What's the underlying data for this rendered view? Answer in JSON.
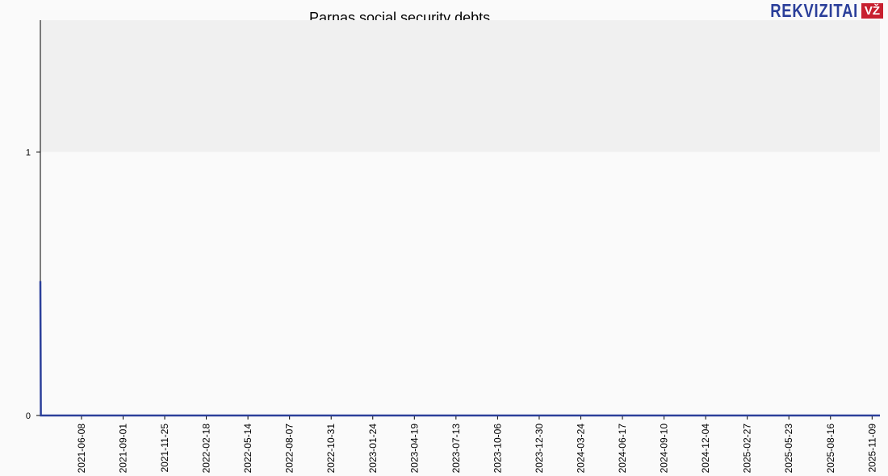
{
  "chart_data": {
    "type": "line",
    "title": "Parnas social security debts",
    "xlabel": "",
    "ylabel": "",
    "ylim": [
      0,
      1.5
    ],
    "xlim": [
      "2021-03-16",
      "2025-11-25"
    ],
    "yticks": [
      0,
      1
    ],
    "xticks": [
      "2021-06-08",
      "2021-09-01",
      "2021-11-25",
      "2022-02-18",
      "2022-05-14",
      "2022-08-07",
      "2022-10-31",
      "2023-01-24",
      "2023-04-19",
      "2023-07-13",
      "2023-10-06",
      "2023-12-30",
      "2024-03-24",
      "2024-06-17",
      "2024-09-10",
      "2024-12-04",
      "2025-02-27",
      "2025-05-23",
      "2025-08-16",
      "2025-11-09"
    ],
    "series": [
      {
        "x": [
          "2021-03-16",
          "2021-03-17",
          "2025-11-25"
        ],
        "values": [
          0.51,
          0,
          0
        ],
        "color": "#2b3f9a"
      }
    ],
    "grid": false,
    "shaded_band_above": 1
  },
  "logo": {
    "text": "REKVIZITAI",
    "badge": "VŽ"
  }
}
